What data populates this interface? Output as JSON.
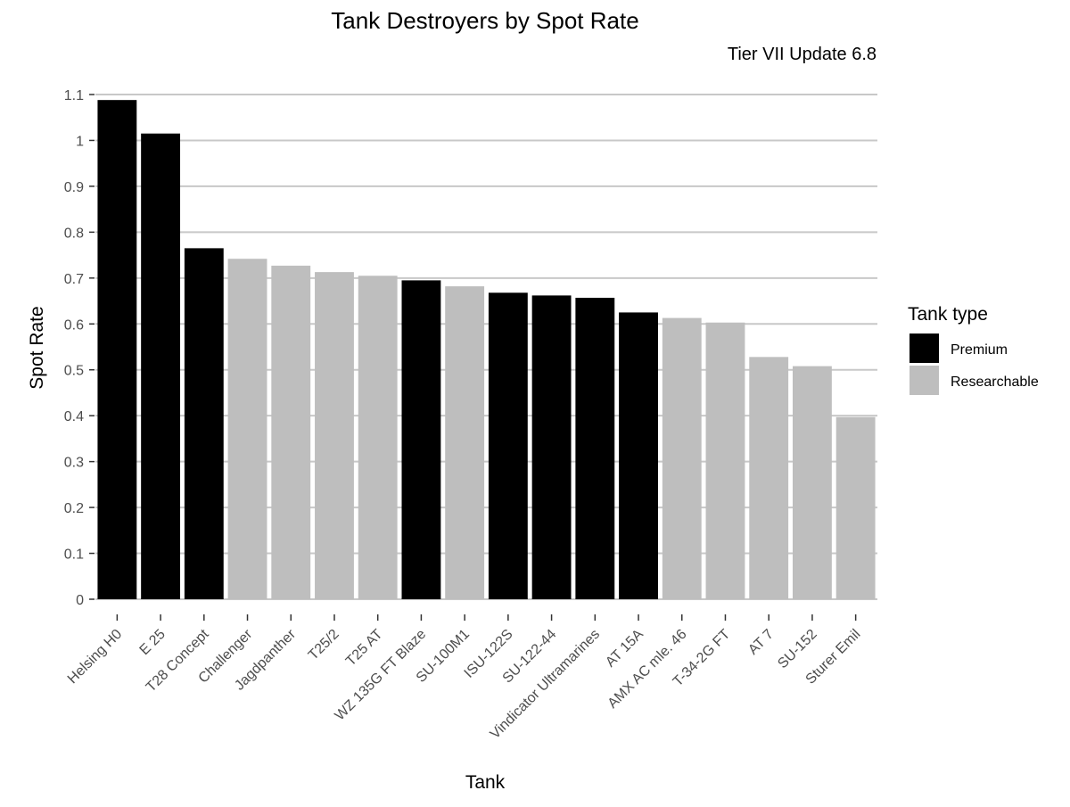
{
  "chart_data": {
    "type": "bar",
    "title": "Tank Destroyers by Spot Rate",
    "subtitle": "Tier VII Update 6.8",
    "xlabel": "Tank",
    "ylabel": "Spot Rate",
    "ylim": [
      0,
      1.1
    ],
    "yticks": [
      0,
      0.1,
      0.2,
      0.3,
      0.4,
      0.5,
      0.6,
      0.7,
      0.8,
      0.9,
      1,
      1.1
    ],
    "ytick_labels": [
      "0",
      "0.1",
      "0.2",
      "0.3",
      "0.4",
      "0.5",
      "0.6",
      "0.7",
      "0.8",
      "0.9",
      "1",
      "1.1"
    ],
    "grid": "horizontal",
    "legend": {
      "title": "Tank type",
      "position": "right",
      "entries": [
        {
          "label": "Premium",
          "color": "#000000"
        },
        {
          "label": "Researchable",
          "color": "#bebebe"
        }
      ]
    },
    "categories": [
      "Helsing H0",
      "E 25",
      "T28 Concept",
      "Challenger",
      "Jagdpanther",
      "T25/2",
      "T25 AT",
      "WZ 135G FT Blaze",
      "SU-100M1",
      "ISU-122S",
      "SU-122-44",
      "Vindicator Ultramarines",
      "AT 15A",
      "AMX AC mle. 46",
      "T-34-2G FT",
      "AT 7",
      "SU-152",
      "Sturer Emil"
    ],
    "values": [
      1.088,
      1.015,
      0.765,
      0.742,
      0.727,
      0.713,
      0.705,
      0.695,
      0.682,
      0.668,
      0.662,
      0.657,
      0.625,
      0.613,
      0.603,
      0.528,
      0.508,
      0.397
    ],
    "tank_type": [
      "Premium",
      "Premium",
      "Premium",
      "Researchable",
      "Researchable",
      "Researchable",
      "Researchable",
      "Premium",
      "Researchable",
      "Premium",
      "Premium",
      "Premium",
      "Premium",
      "Researchable",
      "Researchable",
      "Researchable",
      "Researchable",
      "Researchable"
    ],
    "colors": {
      "Premium": "#000000",
      "Researchable": "#bebebe",
      "grid": "#c8c8c8"
    }
  }
}
